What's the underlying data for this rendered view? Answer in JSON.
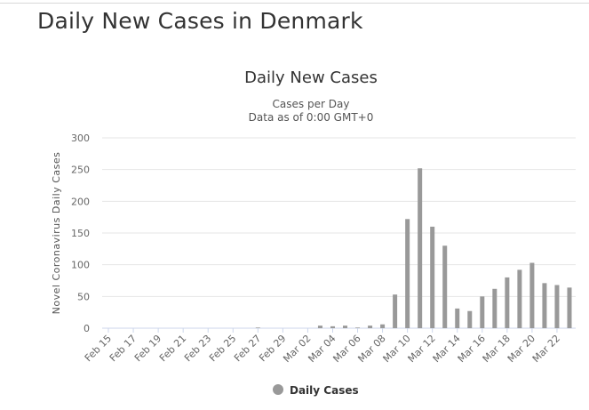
{
  "page": {
    "title": "Daily New Cases in Denmark"
  },
  "chart_data": {
    "type": "bar",
    "title": "Daily New Cases",
    "subtitle_lines": [
      "Cases per Day",
      "Data as of 0:00 GMT+0"
    ],
    "xlabel": "",
    "ylabel": "Novel Coronavirus Daily Cases",
    "ylim": [
      0,
      300
    ],
    "yticks": [
      0,
      50,
      100,
      150,
      200,
      250,
      300
    ],
    "grid": true,
    "legend_position": "bottom-center",
    "bar_color": "#999999",
    "categories": [
      "Feb 15",
      "Feb 16",
      "Feb 17",
      "Feb 18",
      "Feb 19",
      "Feb 20",
      "Feb 21",
      "Feb 22",
      "Feb 23",
      "Feb 24",
      "Feb 25",
      "Feb 26",
      "Feb 27",
      "Feb 28",
      "Feb 29",
      "Mar 01",
      "Mar 02",
      "Mar 03",
      "Mar 04",
      "Mar 05",
      "Mar 06",
      "Mar 07",
      "Mar 08",
      "Mar 09",
      "Mar 10",
      "Mar 11",
      "Mar 12",
      "Mar 13",
      "Mar 14",
      "Mar 15",
      "Mar 16",
      "Mar 17",
      "Mar 18",
      "Mar 19",
      "Mar 20",
      "Mar 21",
      "Mar 22",
      "Mar 23"
    ],
    "tick_labels": [
      "Feb 15",
      "Feb 17",
      "Feb 19",
      "Feb 21",
      "Feb 23",
      "Feb 25",
      "Feb 27",
      "Feb 29",
      "Mar 02",
      "Mar 04",
      "Mar 06",
      "Mar 08",
      "Mar 10",
      "Mar 12",
      "Mar 14",
      "Mar 16",
      "Mar 18",
      "Mar 20",
      "Mar 22"
    ],
    "series": [
      {
        "name": "Daily Cases",
        "values": [
          0,
          0,
          0,
          0,
          0,
          0,
          0,
          0,
          0,
          0,
          0,
          0,
          1,
          0,
          0,
          0,
          0,
          4,
          3,
          4,
          1,
          4,
          6,
          53,
          172,
          252,
          160,
          130,
          31,
          27,
          50,
          62,
          80,
          92,
          103,
          71,
          68,
          64
        ]
      }
    ]
  }
}
